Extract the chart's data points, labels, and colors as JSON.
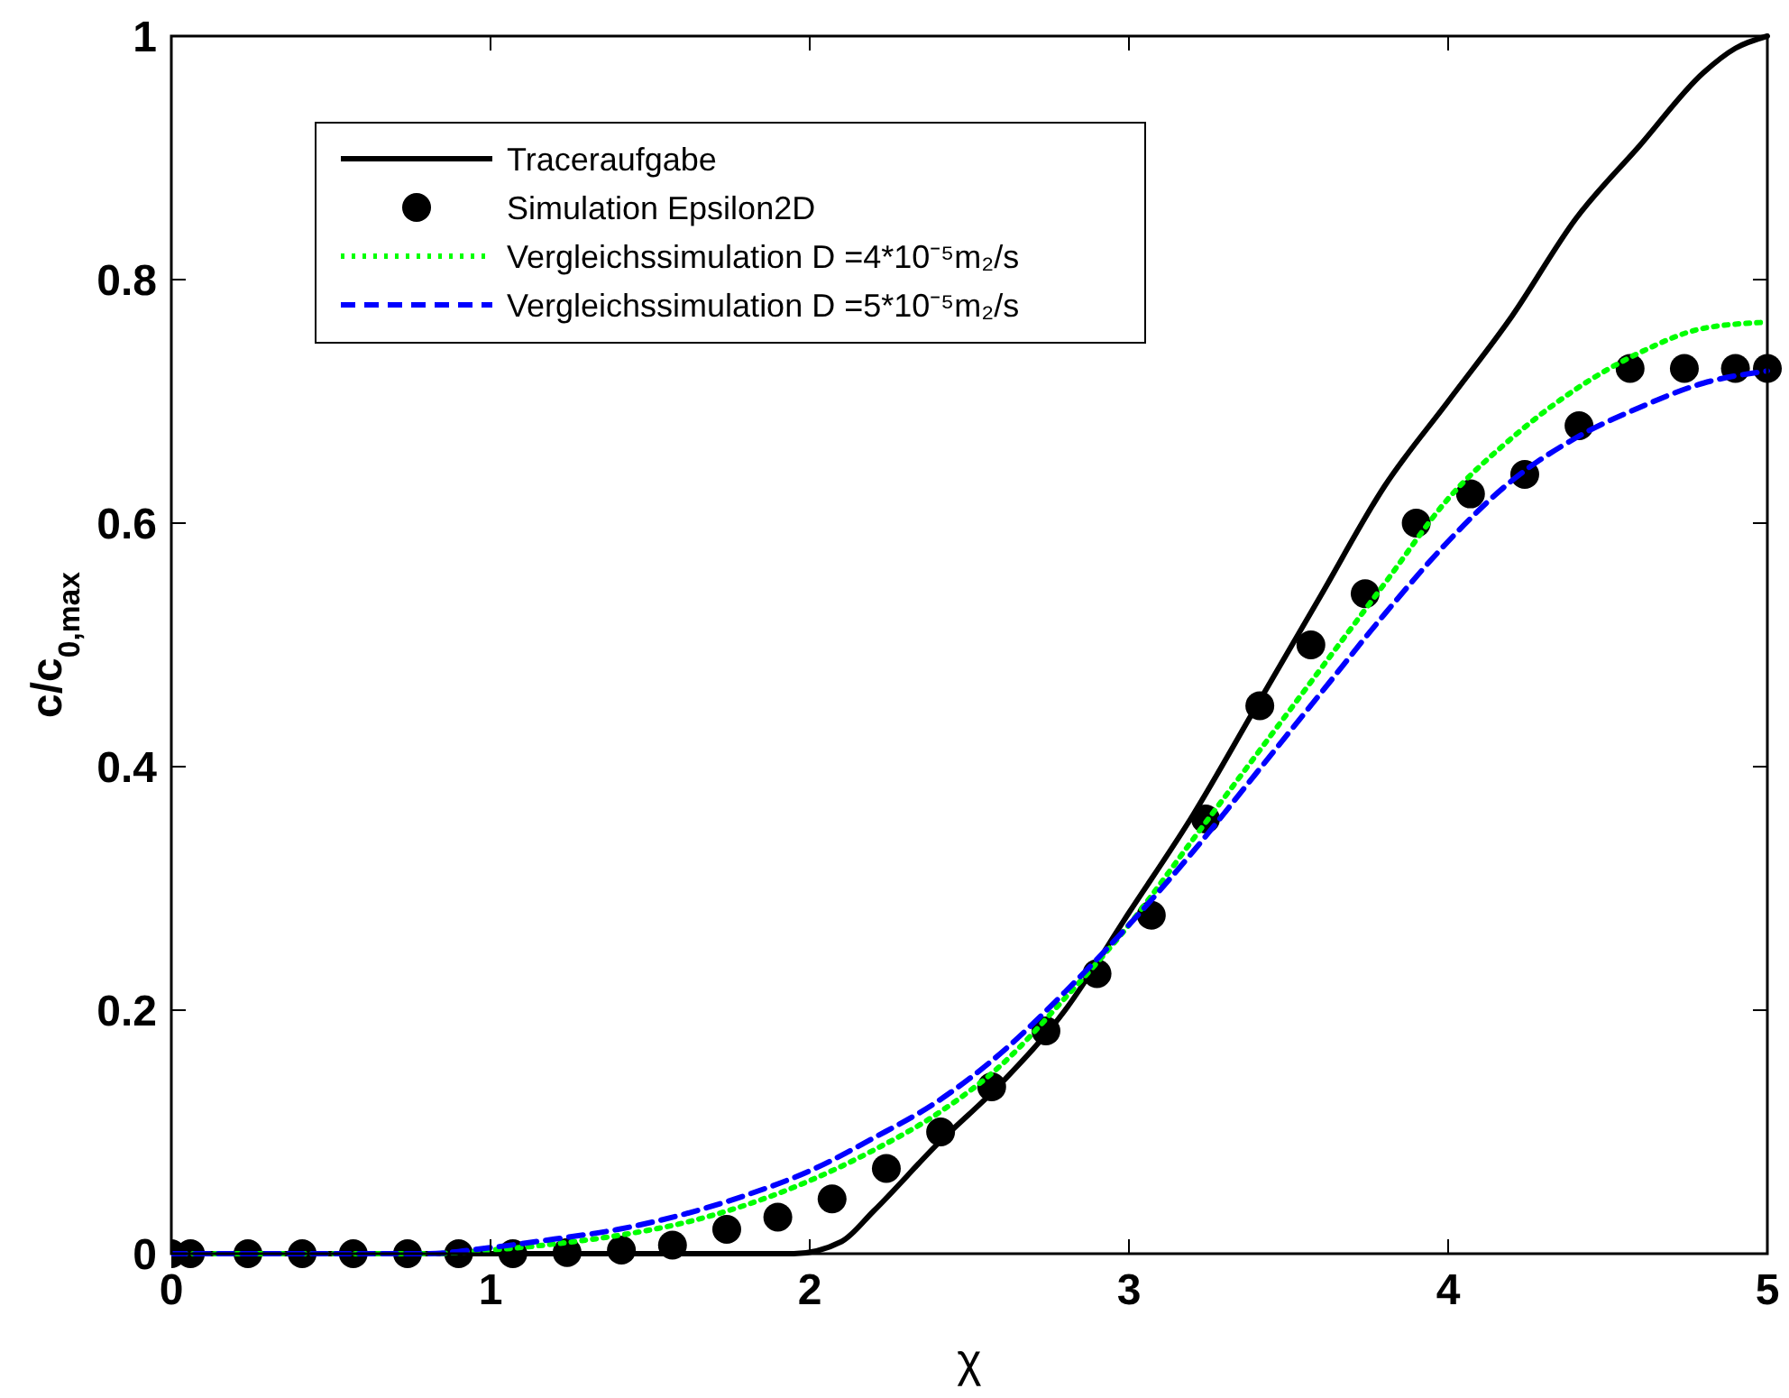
{
  "chart_data": {
    "type": "line",
    "xlabel": "χ",
    "ylabel": "c/c$_{0,max}$",
    "xlim": [
      0,
      5
    ],
    "ylim": [
      0,
      1
    ],
    "xticks": [
      0,
      1,
      2,
      3,
      4,
      5
    ],
    "yticks": [
      0,
      0.2,
      0.4,
      0.6,
      0.8,
      1
    ],
    "grid": false,
    "legend": "top left",
    "series": [
      {
        "name": "Traceraufgabe",
        "color": "#000000",
        "line_style": "solid",
        "x": [
          0,
          1,
          1.95,
          2.1,
          2.2,
          2.4,
          2.6,
          2.8,
          3.0,
          3.2,
          3.4,
          3.6,
          3.8,
          4.0,
          4.2,
          4.4,
          4.6,
          4.8,
          4.9,
          5.0
        ],
        "values": [
          0,
          0,
          0,
          0.01,
          0.035,
          0.09,
          0.14,
          0.2,
          0.28,
          0.36,
          0.45,
          0.54,
          0.63,
          0.7,
          0.77,
          0.85,
          0.91,
          0.97,
          0.99,
          1.0
        ]
      },
      {
        "name": "Simulation Epsilon2D",
        "type": "scatter",
        "color": "#000000",
        "marker": "circle",
        "x": [
          0,
          0.06,
          0.24,
          0.41,
          0.57,
          0.74,
          0.9,
          1.07,
          1.24,
          1.41,
          1.57,
          1.74,
          1.9,
          2.07,
          2.24,
          2.41,
          2.57,
          2.74,
          2.9,
          3.07,
          3.24,
          3.41,
          3.57,
          3.74,
          3.9,
          4.07,
          4.24,
          4.41,
          4.57,
          4.74,
          4.9,
          5.0
        ],
        "values": [
          0,
          0,
          0,
          0,
          0,
          0,
          0,
          0,
          0.001,
          0.003,
          0.007,
          0.02,
          0.03,
          0.045,
          0.07,
          0.1,
          0.137,
          0.183,
          0.23,
          0.278,
          0.357,
          0.45,
          0.5,
          0.542,
          0.6,
          0.624,
          0.64,
          0.68,
          0.727,
          0.727,
          0.727,
          0.727
        ]
      },
      {
        "name": "Vergleichssimulation D =4*10⁻⁵m₂/s",
        "color": "#00ff00",
        "line_style": "dotted",
        "x": [
          0,
          0.8,
          1.0,
          1.2,
          1.4,
          1.6,
          1.8,
          2.0,
          2.2,
          2.4,
          2.6,
          2.8,
          3.0,
          3.2,
          3.4,
          3.6,
          3.8,
          4.0,
          4.2,
          4.4,
          4.6,
          4.8,
          5.0
        ],
        "values": [
          0,
          0,
          0.003,
          0.008,
          0.015,
          0.025,
          0.04,
          0.06,
          0.085,
          0.115,
          0.155,
          0.21,
          0.27,
          0.34,
          0.41,
          0.48,
          0.55,
          0.62,
          0.67,
          0.71,
          0.74,
          0.76,
          0.765
        ]
      },
      {
        "name": "Vergleichssimulation D =5*10⁻⁵m₂/s",
        "color": "#0000ff",
        "line_style": "dashed",
        "x": [
          0,
          0.8,
          1.0,
          1.2,
          1.4,
          1.6,
          1.8,
          2.0,
          2.2,
          2.4,
          2.6,
          2.8,
          3.0,
          3.2,
          3.4,
          3.6,
          3.8,
          4.0,
          4.2,
          4.4,
          4.6,
          4.8,
          5.0
        ],
        "values": [
          0,
          0,
          0.005,
          0.012,
          0.02,
          0.032,
          0.048,
          0.068,
          0.095,
          0.125,
          0.165,
          0.215,
          0.27,
          0.33,
          0.395,
          0.46,
          0.525,
          0.585,
          0.635,
          0.67,
          0.695,
          0.715,
          0.725
        ]
      }
    ]
  }
}
